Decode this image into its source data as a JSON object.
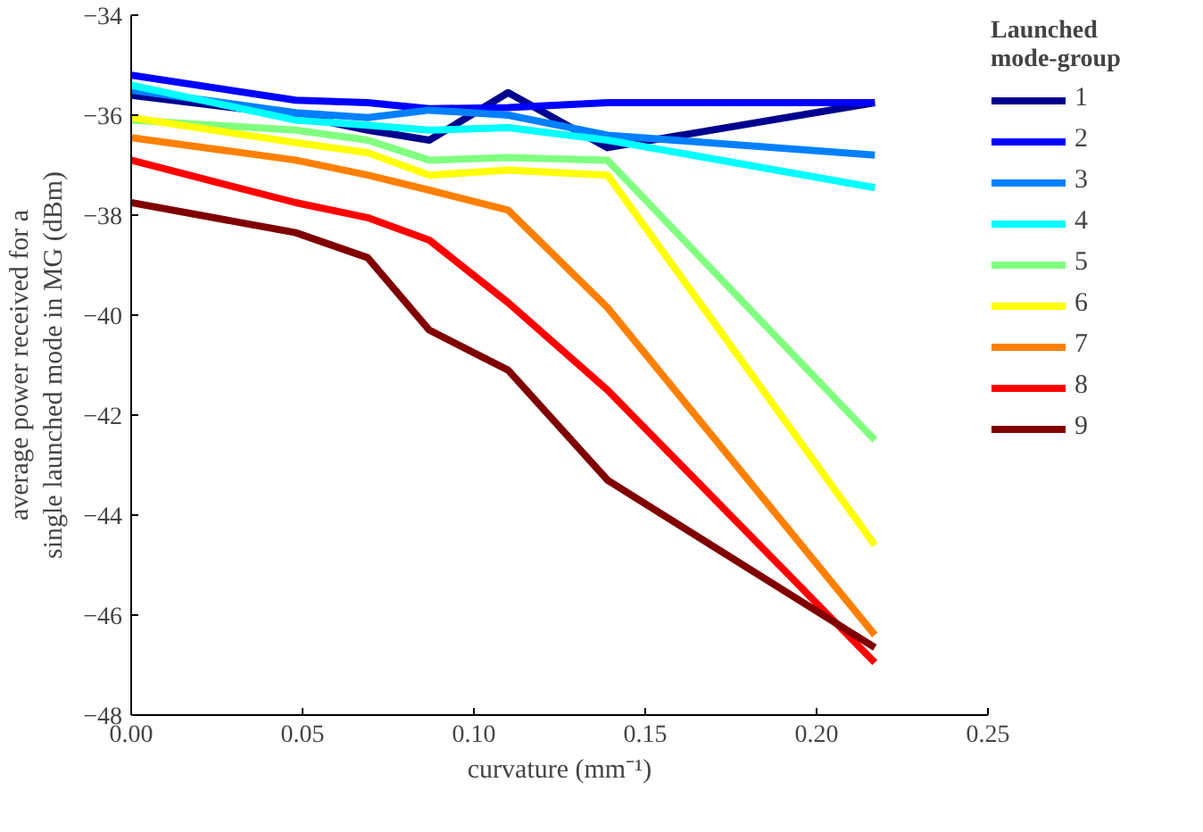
{
  "chart_data": {
    "type": "line",
    "xlabel": "curvature (mm⁻¹)",
    "ylabel": "average power received for a\nsingle launched mode in MG (dBm)",
    "legend_title": "Launched\nmode-group",
    "x": [
      0,
      0.048,
      0.069,
      0.087,
      0.11,
      0.139,
      0.217
    ],
    "series": [
      {
        "name": "1",
        "color": "#00008f",
        "values": [
          -35.6,
          -36.0,
          -36.3,
          -36.5,
          -35.55,
          -36.65,
          -35.75
        ]
      },
      {
        "name": "2",
        "color": "#0000ff",
        "values": [
          -35.2,
          -35.7,
          -35.75,
          -35.87,
          -35.85,
          -35.75,
          -35.75
        ]
      },
      {
        "name": "3",
        "color": "#0080ff",
        "values": [
          -35.5,
          -35.95,
          -36.05,
          -35.9,
          -36.0,
          -36.4,
          -36.8
        ]
      },
      {
        "name": "4",
        "color": "#00ffff",
        "values": [
          -35.4,
          -36.1,
          -36.2,
          -36.3,
          -36.25,
          -36.5,
          -37.45
        ]
      },
      {
        "name": "5",
        "color": "#80ff80",
        "values": [
          -36.1,
          -36.3,
          -36.5,
          -36.9,
          -36.85,
          -36.9,
          -42.5
        ]
      },
      {
        "name": "6",
        "color": "#ffff00",
        "values": [
          -36.05,
          -36.55,
          -36.75,
          -37.2,
          -37.1,
          -37.2,
          -44.6
        ]
      },
      {
        "name": "7",
        "color": "#ff8000",
        "values": [
          -36.45,
          -36.9,
          -37.2,
          -37.5,
          -37.9,
          -39.85,
          -46.4
        ]
      },
      {
        "name": "8",
        "color": "#ff0000",
        "values": [
          -36.9,
          -37.75,
          -38.05,
          -38.5,
          -39.75,
          -41.5,
          -46.95
        ]
      },
      {
        "name": "9",
        "color": "#800000",
        "values": [
          -37.75,
          -38.35,
          -38.85,
          -40.3,
          -41.1,
          -43.3,
          -46.65
        ]
      }
    ],
    "xlim": [
      0,
      0.25
    ],
    "ylim": [
      -48,
      -34
    ],
    "xticks": [
      {
        "value": 0,
        "label": "0.00"
      },
      {
        "value": 0.05,
        "label": "0.05"
      },
      {
        "value": 0.1,
        "label": "0.10"
      },
      {
        "value": 0.15,
        "label": "0.15"
      },
      {
        "value": 0.2,
        "label": "0.20"
      },
      {
        "value": 0.25,
        "label": "0.25"
      }
    ],
    "yticks": [
      -48,
      -46,
      -44,
      -42,
      -40,
      -38,
      -36,
      -34
    ],
    "grid": false,
    "legend": "right",
    "marker": "none",
    "line_style": "solid"
  }
}
